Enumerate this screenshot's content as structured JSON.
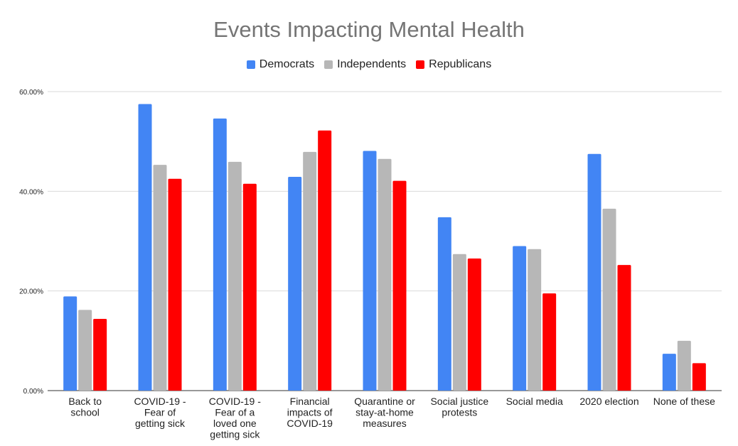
{
  "chart_data": {
    "type": "bar",
    "title": "Events Impacting Mental Health",
    "xlabel": "",
    "ylabel": "",
    "ylim": [
      0,
      60
    ],
    "yticks": [
      "0.00%",
      "20.00%",
      "40.00%",
      "60.00%"
    ],
    "ytick_values": [
      0,
      20,
      40,
      60
    ],
    "grid": true,
    "legend_position": "top-center",
    "categories": [
      [
        "Back to",
        "school"
      ],
      [
        "COVID-19 -",
        "Fear of",
        "getting sick"
      ],
      [
        "COVID-19 -",
        "Fear of a",
        "loved one",
        "getting sick"
      ],
      [
        "Financial",
        "impacts of",
        "COVID-19"
      ],
      [
        "Quarantine or",
        "stay-at-home",
        "measures"
      ],
      [
        "Social justice",
        "protests"
      ],
      [
        "Social media"
      ],
      [
        "2020 election"
      ],
      [
        "None of these"
      ]
    ],
    "series": [
      {
        "name": "Democrats",
        "color": "#4285f4",
        "values": [
          18.9,
          57.5,
          54.6,
          42.9,
          48.1,
          34.8,
          29.0,
          47.5,
          7.4
        ]
      },
      {
        "name": "Independents",
        "color": "#b7b7b7",
        "values": [
          16.2,
          45.3,
          45.9,
          47.9,
          46.5,
          27.4,
          28.4,
          36.5,
          10.0
        ]
      },
      {
        "name": "Republicans",
        "color": "#ff0000",
        "values": [
          14.4,
          42.5,
          41.5,
          52.2,
          42.1,
          26.5,
          19.5,
          25.2,
          5.5
        ]
      }
    ]
  }
}
